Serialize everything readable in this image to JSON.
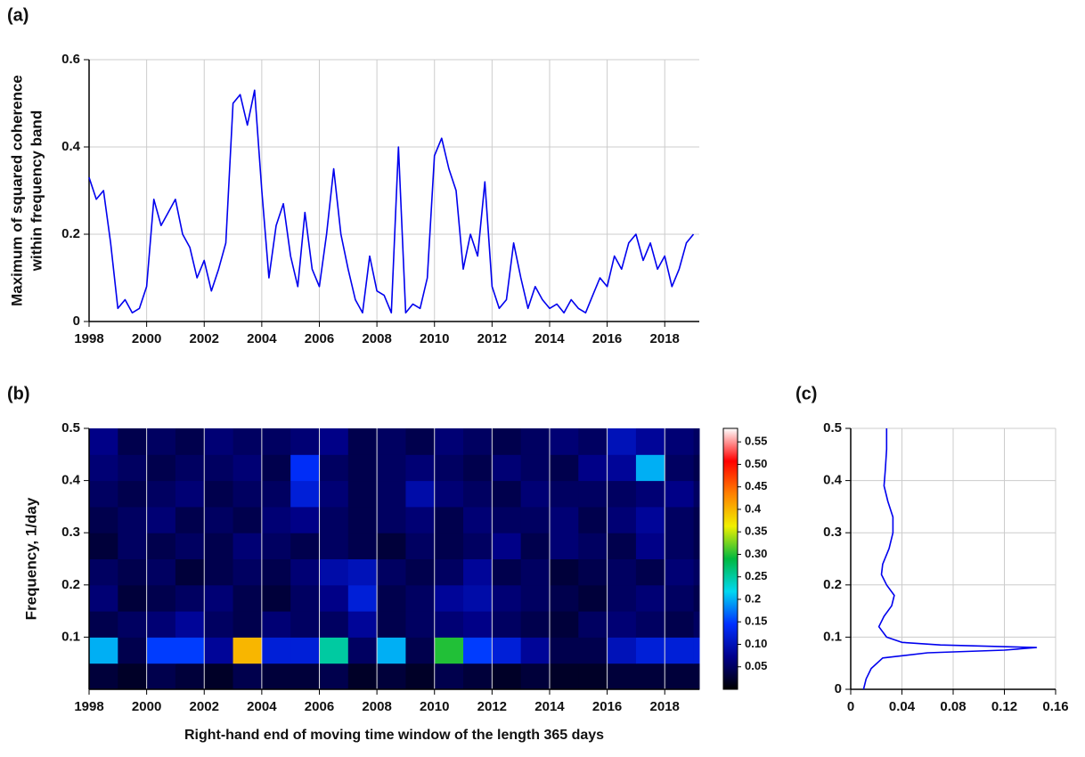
{
  "chart_data": [
    {
      "type": "line",
      "label": "(a)",
      "ylabel": [
        "Maximum of squared coherence",
        "within frequency band"
      ],
      "color": "#0000ee",
      "grid": true,
      "xlim": [
        1998,
        2019.2
      ],
      "xticks": [
        1998,
        2000,
        2002,
        2004,
        2006,
        2008,
        2010,
        2012,
        2014,
        2016,
        2018
      ],
      "ylim": [
        0,
        0.6
      ],
      "yticks": [
        0,
        0.2,
        0.4,
        0.6
      ],
      "x": [
        1998,
        1998.25,
        1998.5,
        1998.75,
        1999,
        1999.25,
        1999.5,
        1999.75,
        2000,
        2000.25,
        2000.5,
        2000.75,
        2001,
        2001.25,
        2001.5,
        2001.75,
        2002,
        2002.25,
        2002.5,
        2002.75,
        2003,
        2003.25,
        2003.5,
        2003.75,
        2004,
        2004.25,
        2004.5,
        2004.75,
        2005,
        2005.25,
        2005.5,
        2005.75,
        2006,
        2006.25,
        2006.5,
        2006.75,
        2007,
        2007.25,
        2007.5,
        2007.75,
        2008,
        2008.25,
        2008.5,
        2008.75,
        2009,
        2009.25,
        2009.5,
        2009.75,
        2010,
        2010.25,
        2010.5,
        2010.75,
        2011,
        2011.25,
        2011.5,
        2011.75,
        2012,
        2012.25,
        2012.5,
        2012.75,
        2013,
        2013.25,
        2013.5,
        2013.75,
        2014,
        2014.25,
        2014.5,
        2014.75,
        2015,
        2015.25,
        2015.5,
        2015.75,
        2016,
        2016.25,
        2016.5,
        2016.75,
        2017,
        2017.25,
        2017.5,
        2017.75,
        2018,
        2018.25,
        2018.5,
        2018.75,
        2019
      ],
      "values": [
        0.33,
        0.28,
        0.3,
        0.18,
        0.03,
        0.05,
        0.02,
        0.03,
        0.08,
        0.28,
        0.22,
        0.25,
        0.28,
        0.2,
        0.17,
        0.1,
        0.14,
        0.07,
        0.12,
        0.18,
        0.5,
        0.52,
        0.45,
        0.53,
        0.3,
        0.1,
        0.22,
        0.27,
        0.15,
        0.08,
        0.25,
        0.12,
        0.08,
        0.2,
        0.35,
        0.2,
        0.12,
        0.05,
        0.02,
        0.15,
        0.07,
        0.06,
        0.02,
        0.4,
        0.02,
        0.04,
        0.03,
        0.1,
        0.38,
        0.42,
        0.35,
        0.3,
        0.12,
        0.2,
        0.15,
        0.32,
        0.08,
        0.03,
        0.05,
        0.18,
        0.1,
        0.03,
        0.08,
        0.05,
        0.03,
        0.04,
        0.02,
        0.05,
        0.03,
        0.02,
        0.06,
        0.1,
        0.08,
        0.15,
        0.12,
        0.18,
        0.2,
        0.14,
        0.18,
        0.12,
        0.15,
        0.08,
        0.12,
        0.18,
        0.2
      ]
    },
    {
      "type": "heatmap",
      "label": "(b)",
      "xlabel": "Right-hand end of moving time window of the length 365 days",
      "ylabel": "Frequency, 1/day",
      "xlim": [
        1998,
        2019.2
      ],
      "xticks": [
        1998,
        2000,
        2002,
        2004,
        2006,
        2008,
        2010,
        2012,
        2014,
        2016,
        2018
      ],
      "ylim": [
        0,
        0.5
      ],
      "yticks": [
        0.1,
        0.2,
        0.3,
        0.4,
        0.5
      ],
      "x": [
        1998,
        1999,
        2000,
        2001,
        2002,
        2003,
        2004,
        2005,
        2006,
        2007,
        2008,
        2009,
        2010,
        2011,
        2012,
        2013,
        2014,
        2015,
        2016,
        2017,
        2018,
        2019
      ],
      "y": [
        0,
        0.05,
        0.1,
        0.15,
        0.2,
        0.25,
        0.3,
        0.35,
        0.4,
        0.45
      ],
      "z": [
        [
          0.03,
          0.02,
          0.04,
          0.03,
          0.02,
          0.04,
          0.03,
          0.03,
          0.04,
          0.02,
          0.03,
          0.02,
          0.04,
          0.03,
          0.02,
          0.03,
          0.02,
          0.02,
          0.03,
          0.03,
          0.03,
          0.03
        ],
        [
          0.2,
          0.04,
          0.15,
          0.15,
          0.08,
          0.4,
          0.12,
          0.12,
          0.25,
          0.05,
          0.2,
          0.04,
          0.3,
          0.15,
          0.12,
          0.08,
          0.04,
          0.04,
          0.1,
          0.12,
          0.12,
          0.12
        ],
        [
          0.04,
          0.05,
          0.06,
          0.08,
          0.05,
          0.04,
          0.06,
          0.05,
          0.05,
          0.08,
          0.04,
          0.05,
          0.06,
          0.07,
          0.05,
          0.04,
          0.03,
          0.05,
          0.06,
          0.05,
          0.04,
          0.05
        ],
        [
          0.06,
          0.03,
          0.04,
          0.05,
          0.06,
          0.04,
          0.03,
          0.05,
          0.07,
          0.12,
          0.04,
          0.05,
          0.08,
          0.09,
          0.06,
          0.05,
          0.04,
          0.03,
          0.05,
          0.06,
          0.05,
          0.04
        ],
        [
          0.05,
          0.04,
          0.05,
          0.03,
          0.04,
          0.05,
          0.04,
          0.06,
          0.09,
          0.1,
          0.05,
          0.04,
          0.05,
          0.08,
          0.04,
          0.05,
          0.03,
          0.04,
          0.05,
          0.04,
          0.06,
          0.05
        ],
        [
          0.03,
          0.05,
          0.04,
          0.05,
          0.04,
          0.06,
          0.05,
          0.04,
          0.05,
          0.04,
          0.03,
          0.05,
          0.04,
          0.05,
          0.07,
          0.04,
          0.06,
          0.05,
          0.04,
          0.07,
          0.05,
          0.04
        ],
        [
          0.04,
          0.05,
          0.06,
          0.04,
          0.05,
          0.04,
          0.06,
          0.07,
          0.05,
          0.04,
          0.05,
          0.06,
          0.04,
          0.06,
          0.05,
          0.05,
          0.06,
          0.04,
          0.06,
          0.08,
          0.05,
          0.04
        ],
        [
          0.05,
          0.04,
          0.05,
          0.06,
          0.04,
          0.05,
          0.05,
          0.12,
          0.06,
          0.04,
          0.05,
          0.09,
          0.06,
          0.05,
          0.04,
          0.06,
          0.05,
          0.05,
          0.05,
          0.06,
          0.07,
          0.05
        ],
        [
          0.06,
          0.05,
          0.04,
          0.05,
          0.05,
          0.06,
          0.04,
          0.14,
          0.05,
          0.04,
          0.05,
          0.06,
          0.05,
          0.04,
          0.06,
          0.05,
          0.04,
          0.07,
          0.08,
          0.2,
          0.05,
          0.04
        ],
        [
          0.07,
          0.04,
          0.05,
          0.04,
          0.06,
          0.05,
          0.05,
          0.06,
          0.07,
          0.04,
          0.05,
          0.04,
          0.06,
          0.05,
          0.04,
          0.05,
          0.06,
          0.05,
          0.1,
          0.08,
          0.06,
          0.05
        ]
      ],
      "zlim": [
        0,
        0.58
      ],
      "zticks": [
        0.05,
        {
          "value": 0.1,
          "label": "0.10"
        },
        0.15,
        0.2,
        0.25,
        {
          "value": 0.3,
          "label": "0.30"
        },
        0.35,
        0.4,
        0.45,
        {
          "value": 0.5,
          "label": "0.50"
        },
        0.55
      ],
      "colors": [
        "#000000",
        "#00008c",
        "#0030ff",
        "#00d8f0",
        "#00b840",
        "#f0f000",
        "#ff8000",
        "#ff0000",
        "#ffffff"
      ]
    },
    {
      "type": "line",
      "label": "(c)",
      "color": "#0000ee",
      "grid": true,
      "xlim": [
        0,
        0.16
      ],
      "xticks": [
        0,
        0.04,
        0.08,
        0.12,
        0.16
      ],
      "ylim": [
        0,
        0.5
      ],
      "yticks": [
        0,
        0.1,
        0.2,
        0.3,
        0.4,
        0.5
      ],
      "y": [
        0,
        0.02,
        0.04,
        0.06,
        0.07,
        0.075,
        0.08,
        0.085,
        0.09,
        0.1,
        0.12,
        0.14,
        0.16,
        0.18,
        0.2,
        0.22,
        0.24,
        0.27,
        0.3,
        0.33,
        0.36,
        0.39,
        0.42,
        0.46,
        0.5
      ],
      "values": [
        0.01,
        0.012,
        0.016,
        0.025,
        0.06,
        0.12,
        0.145,
        0.07,
        0.04,
        0.028,
        0.022,
        0.026,
        0.032,
        0.034,
        0.028,
        0.024,
        0.025,
        0.03,
        0.033,
        0.033,
        0.029,
        0.026,
        0.027,
        0.028,
        0.028
      ]
    }
  ]
}
